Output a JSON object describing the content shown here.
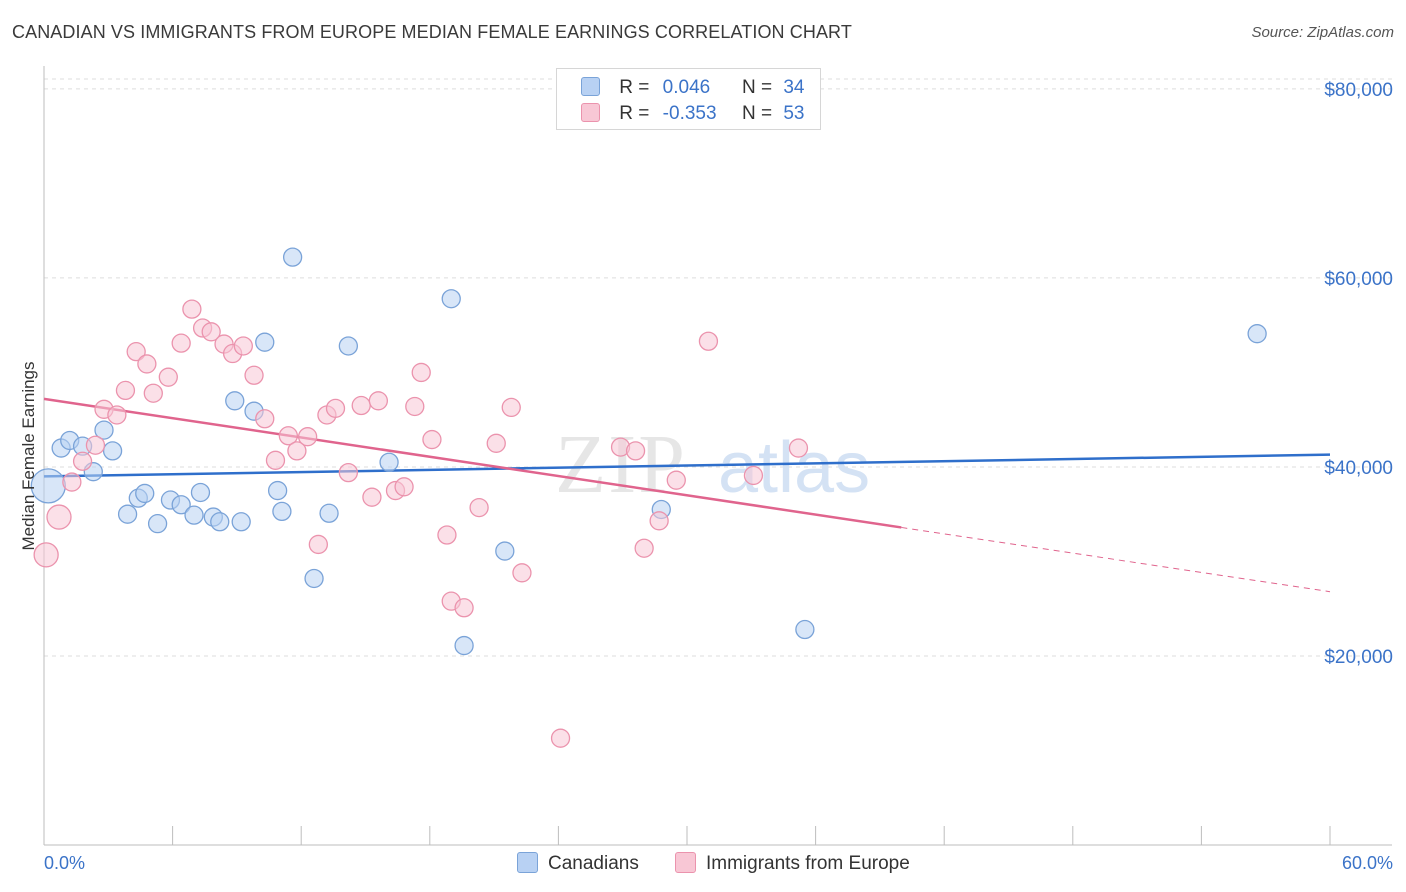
{
  "header": {
    "title": "CANADIAN VS IMMIGRANTS FROM EUROPE MEDIAN FEMALE EARNINGS CORRELATION CHART",
    "source": "Source: ZipAtlas.com"
  },
  "legend": {
    "rows": [
      {
        "r_label": "R =",
        "r_value": "0.046",
        "n_label": "N =",
        "n_value": "34"
      },
      {
        "r_label": "R =",
        "r_value": "-0.353",
        "n_label": "N =",
        "n_value": "53"
      }
    ]
  },
  "bottom_legend": {
    "series1": "Canadians",
    "series2": "Immigrants from Europe"
  },
  "watermark": {
    "zip": "ZIP",
    "atlas": "atlas"
  },
  "colors": {
    "blue_fill": "#b8d1f3",
    "blue_stroke": "#7aa3d8",
    "blue_line": "#2f6fcb",
    "pink_fill": "#f8c7d5",
    "pink_stroke": "#eb93ad",
    "pink_line": "#e0648d",
    "axis_text": "#3b73c8"
  },
  "chart_data": {
    "type": "scatter",
    "title": "CANADIAN VS IMMIGRANTS FROM EUROPE MEDIAN FEMALE EARNINGS CORRELATION CHART",
    "xlabel": "",
    "ylabel": "Median Female Earnings",
    "xlim": [
      0,
      60
    ],
    "ylim": [
      0,
      82000
    ],
    "x_tick_labels": [
      {
        "x": 0,
        "label": "0.0%"
      },
      {
        "x": 60,
        "label": "60.0%"
      }
    ],
    "x_minor_ticks": [
      6,
      12,
      18,
      24,
      30,
      36,
      42,
      48,
      54,
      60
    ],
    "y_ticks": [
      {
        "y": 20000,
        "label": "$20,000"
      },
      {
        "y": 40000,
        "label": "$40,000"
      },
      {
        "y": 60000,
        "label": "$60,000"
      },
      {
        "y": 80000,
        "label": "$80,000"
      }
    ],
    "grid": true,
    "series": [
      {
        "name": "Canadians",
        "color": "#b8d1f3",
        "points": [
          [
            0.2,
            38000,
            3
          ],
          [
            0.8,
            42000,
            1
          ],
          [
            1.2,
            42800,
            1
          ],
          [
            1.8,
            42200,
            1
          ],
          [
            2.3,
            39500,
            1
          ],
          [
            2.8,
            43900,
            1
          ],
          [
            3.2,
            41700,
            1
          ],
          [
            3.9,
            35000,
            1
          ],
          [
            4.4,
            36700,
            1
          ],
          [
            4.7,
            37200,
            1
          ],
          [
            5.3,
            34000,
            1
          ],
          [
            5.9,
            36500,
            1
          ],
          [
            6.4,
            36000,
            1
          ],
          [
            7.0,
            34900,
            1
          ],
          [
            7.3,
            37300,
            1
          ],
          [
            7.9,
            34700,
            1
          ],
          [
            8.2,
            34200,
            1
          ],
          [
            8.9,
            47000,
            1
          ],
          [
            9.2,
            34200,
            1
          ],
          [
            9.8,
            45900,
            1
          ],
          [
            10.3,
            53200,
            1
          ],
          [
            10.9,
            37500,
            1
          ],
          [
            11.1,
            35300,
            1
          ],
          [
            11.6,
            62200,
            1
          ],
          [
            12.6,
            28200,
            1
          ],
          [
            13.3,
            35100,
            1
          ],
          [
            14.2,
            52800,
            1
          ],
          [
            16.1,
            40500,
            1
          ],
          [
            19.0,
            57800,
            1
          ],
          [
            19.6,
            21100,
            1
          ],
          [
            21.5,
            31100,
            1
          ],
          [
            28.8,
            35500,
            1
          ],
          [
            35.5,
            22800,
            1
          ],
          [
            56.6,
            54100,
            1
          ]
        ]
      },
      {
        "name": "Immigrants from Europe",
        "color": "#f8c7d5",
        "points": [
          [
            0.1,
            30700,
            2
          ],
          [
            0.7,
            34700,
            2
          ],
          [
            1.3,
            38400,
            1
          ],
          [
            1.8,
            40600,
            1
          ],
          [
            2.4,
            42300,
            1
          ],
          [
            2.8,
            46100,
            1
          ],
          [
            3.4,
            45500,
            1
          ],
          [
            3.8,
            48100,
            1
          ],
          [
            4.3,
            52200,
            1
          ],
          [
            4.8,
            50900,
            1
          ],
          [
            5.1,
            47800,
            1
          ],
          [
            5.8,
            49500,
            1
          ],
          [
            6.4,
            53100,
            1
          ],
          [
            6.9,
            56700,
            1
          ],
          [
            7.4,
            54700,
            1
          ],
          [
            7.8,
            54300,
            1
          ],
          [
            8.4,
            53000,
            1
          ],
          [
            8.8,
            52000,
            1
          ],
          [
            9.3,
            52800,
            1
          ],
          [
            9.8,
            49700,
            1
          ],
          [
            10.3,
            45100,
            1
          ],
          [
            10.8,
            40700,
            1
          ],
          [
            11.4,
            43300,
            1
          ],
          [
            11.8,
            41700,
            1
          ],
          [
            12.3,
            43200,
            1
          ],
          [
            12.8,
            31800,
            1
          ],
          [
            13.2,
            45500,
            1
          ],
          [
            13.6,
            46200,
            1
          ],
          [
            14.2,
            39400,
            1
          ],
          [
            14.8,
            46500,
            1
          ],
          [
            15.3,
            36800,
            1
          ],
          [
            15.6,
            47000,
            1
          ],
          [
            16.4,
            37500,
            1
          ],
          [
            16.8,
            37900,
            1
          ],
          [
            17.3,
            46400,
            1
          ],
          [
            17.6,
            50000,
            1
          ],
          [
            18.1,
            42900,
            1
          ],
          [
            18.8,
            32800,
            1
          ],
          [
            19.0,
            25800,
            1
          ],
          [
            19.6,
            25100,
            1
          ],
          [
            20.3,
            35700,
            1
          ],
          [
            21.1,
            42500,
            1
          ],
          [
            21.8,
            46300,
            1
          ],
          [
            22.3,
            28800,
            1
          ],
          [
            24.1,
            11300,
            1
          ],
          [
            26.9,
            42100,
            1
          ],
          [
            27.6,
            41700,
            1
          ],
          [
            28.0,
            31400,
            1
          ],
          [
            28.7,
            34300,
            1
          ],
          [
            29.5,
            38600,
            1
          ],
          [
            31.0,
            53300,
            1
          ],
          [
            33.1,
            39100,
            1
          ],
          [
            35.2,
            42000,
            1
          ]
        ]
      }
    ],
    "trend_lines": [
      {
        "series": "Canadians",
        "x": [
          0,
          60
        ],
        "y": [
          39000,
          41300
        ],
        "style": "solid"
      },
      {
        "series": "Immigrants from Europe",
        "x": [
          0,
          40
        ],
        "y": [
          47200,
          33600
        ],
        "style": "solid"
      },
      {
        "series": "Immigrants from Europe",
        "x": [
          40,
          60
        ],
        "y": [
          33600,
          26800
        ],
        "style": "dashed"
      }
    ]
  }
}
